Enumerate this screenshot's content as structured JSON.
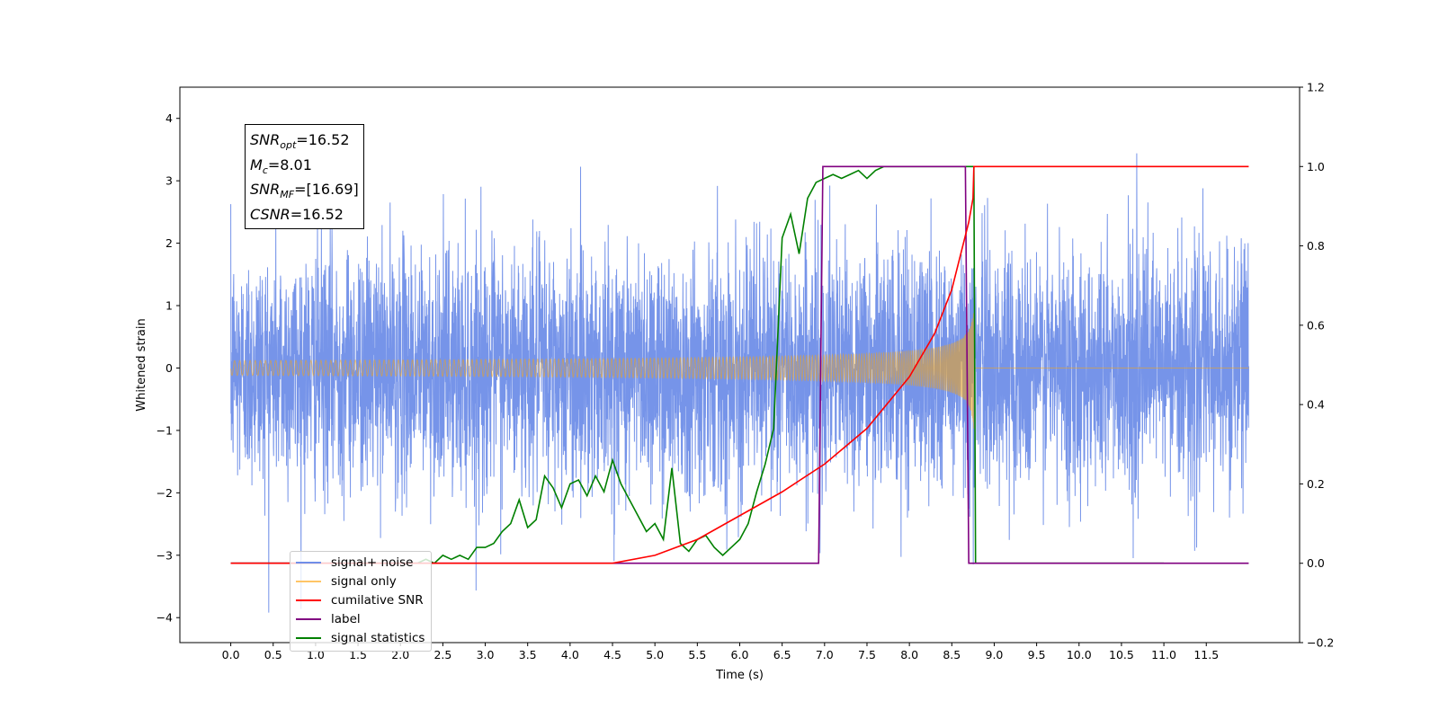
{
  "chart_data": {
    "type": "line",
    "title": "",
    "xlabel": "Time (s)",
    "ylabel": "Whitened strain",
    "xlim": [
      -0.6,
      12.6
    ],
    "ylim": [
      -4.4,
      4.5
    ],
    "y2lim": [
      -0.2,
      1.2
    ],
    "xticks": [
      "0.0",
      "0.5",
      "1.0",
      "1.5",
      "2.0",
      "2.5",
      "3.0",
      "3.5",
      "4.0",
      "4.5",
      "5.0",
      "5.5",
      "6.0",
      "6.5",
      "7.0",
      "7.5",
      "8.0",
      "8.5",
      "9.0",
      "9.5",
      "10.0",
      "10.5",
      "11.0",
      "11.5"
    ],
    "yticks": [
      "4",
      "3",
      "2",
      "1",
      "0",
      "−1",
      "−2",
      "−3",
      "−4"
    ],
    "y2ticks": [
      "1.2",
      "1.0",
      "0.8",
      "0.6",
      "0.4",
      "0.2",
      "0.0",
      "−0.2"
    ],
    "grid": false,
    "legend_position": "lower-left",
    "series": [
      {
        "name": "signal+ noise",
        "color": "#6f8ee8",
        "axis": "left",
        "noise_sigma": 0.95,
        "x_range": [
          0,
          12
        ]
      },
      {
        "name": "signal only",
        "color": "#ffa500",
        "axis": "left",
        "merger_time": 8.76,
        "peak_amplitude": 1.2,
        "x_range": [
          0,
          12
        ]
      },
      {
        "name": "cumilative SNR",
        "color": "#ff0000",
        "axis": "right",
        "x": [
          0,
          4.5,
          5.0,
          5.5,
          6.0,
          6.5,
          7.0,
          7.5,
          8.0,
          8.3,
          8.5,
          8.7,
          8.75,
          8.76,
          12.0
        ],
        "y": [
          0,
          0.0,
          0.02,
          0.06,
          0.12,
          0.18,
          0.25,
          0.34,
          0.47,
          0.58,
          0.69,
          0.86,
          0.92,
          1.0,
          1.0
        ]
      },
      {
        "name": "label",
        "color": "#800080",
        "axis": "right",
        "x": [
          0,
          6.93,
          6.98,
          8.66,
          8.7,
          12.0
        ],
        "y": [
          0,
          0,
          1,
          1,
          0,
          0
        ]
      },
      {
        "name": "signal statistics",
        "color": "#008000",
        "axis": "right",
        "x": [
          0,
          2.2,
          2.3,
          2.4,
          2.5,
          2.6,
          2.7,
          2.8,
          2.9,
          3.0,
          3.1,
          3.2,
          3.3,
          3.4,
          3.5,
          3.6,
          3.7,
          3.8,
          3.9,
          4.0,
          4.1,
          4.2,
          4.3,
          4.4,
          4.5,
          4.6,
          4.7,
          4.8,
          4.9,
          5.0,
          5.1,
          5.2,
          5.3,
          5.4,
          5.5,
          5.6,
          5.7,
          5.8,
          5.9,
          6.0,
          6.1,
          6.2,
          6.3,
          6.4,
          6.5,
          6.6,
          6.7,
          6.8,
          6.9,
          7.0,
          7.1,
          7.2,
          7.3,
          7.4,
          7.5,
          7.6,
          7.7,
          7.8,
          7.9,
          8.0,
          8.1,
          8.2,
          8.3,
          8.4,
          8.5,
          8.6,
          8.7,
          8.76,
          8.78,
          11.0
        ],
        "y": [
          0,
          0,
          0.01,
          0.0,
          0.02,
          0.01,
          0.02,
          0.01,
          0.04,
          0.04,
          0.05,
          0.08,
          0.1,
          0.16,
          0.09,
          0.11,
          0.22,
          0.19,
          0.14,
          0.2,
          0.21,
          0.17,
          0.22,
          0.18,
          0.26,
          0.2,
          0.16,
          0.12,
          0.08,
          0.1,
          0.06,
          0.24,
          0.05,
          0.03,
          0.06,
          0.07,
          0.04,
          0.02,
          0.04,
          0.06,
          0.1,
          0.18,
          0.25,
          0.34,
          0.82,
          0.88,
          0.78,
          0.92,
          0.96,
          0.97,
          0.98,
          0.97,
          0.98,
          0.99,
          0.97,
          0.99,
          1.0,
          1.0,
          1.0,
          1.0,
          1.0,
          1.0,
          1.0,
          1.0,
          1.0,
          1.0,
          1.0,
          1.0,
          0.0,
          0.0
        ]
      }
    ],
    "annotations": {
      "snr_opt": {
        "name": "SNR",
        "sub": "opt",
        "value": "=16.52"
      },
      "mc": {
        "name": "M",
        "sub": "c",
        "value": "=8.01"
      },
      "snr_mf": {
        "name": "SNR",
        "sub": "MF",
        "value": "=[16.69]"
      },
      "csnr": {
        "name": "CSNR",
        "value": "=16.52"
      }
    }
  }
}
